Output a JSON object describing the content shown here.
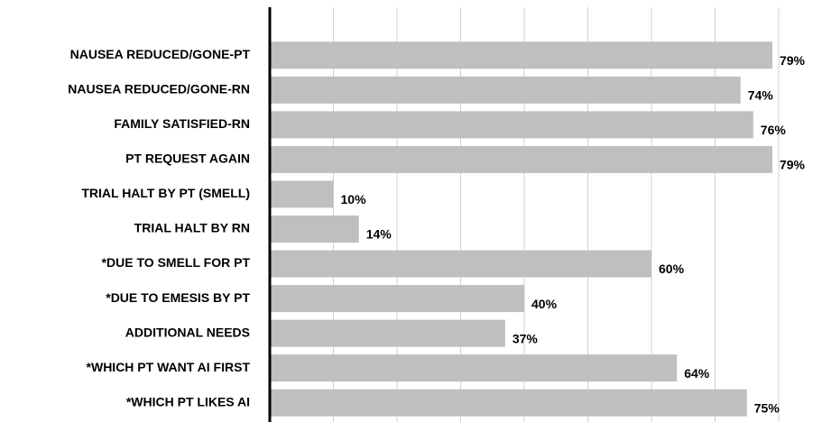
{
  "chart_data": {
    "type": "bar",
    "orientation": "horizontal",
    "categories": [
      "NAUSEA REDUCED/GONE-PT",
      "NAUSEA REDUCED/GONE-RN",
      "FAMILY SATISFIED-RN",
      "PT REQUEST AGAIN",
      "TRIAL HALT BY PT (SMELL)",
      "TRIAL HALT BY RN",
      "*DUE TO SMELL FOR PT",
      "*DUE TO EMESIS BY PT",
      "ADDITIONAL NEEDS",
      "*WHICH PT WANT AI FIRST",
      "*WHICH PT LIKES AI"
    ],
    "values": [
      79,
      74,
      76,
      79,
      10,
      14,
      60,
      40,
      37,
      64,
      75
    ],
    "value_labels": [
      "79%",
      "74%",
      "76%",
      "79%",
      "10%",
      "14%",
      "60%",
      "40%",
      "37%",
      "64%",
      "75%"
    ],
    "color": "#bfbfbf",
    "xlim": [
      0,
      80
    ],
    "xticks": [
      0,
      10,
      20,
      30,
      40,
      50,
      60,
      70,
      80
    ],
    "grid": true
  }
}
